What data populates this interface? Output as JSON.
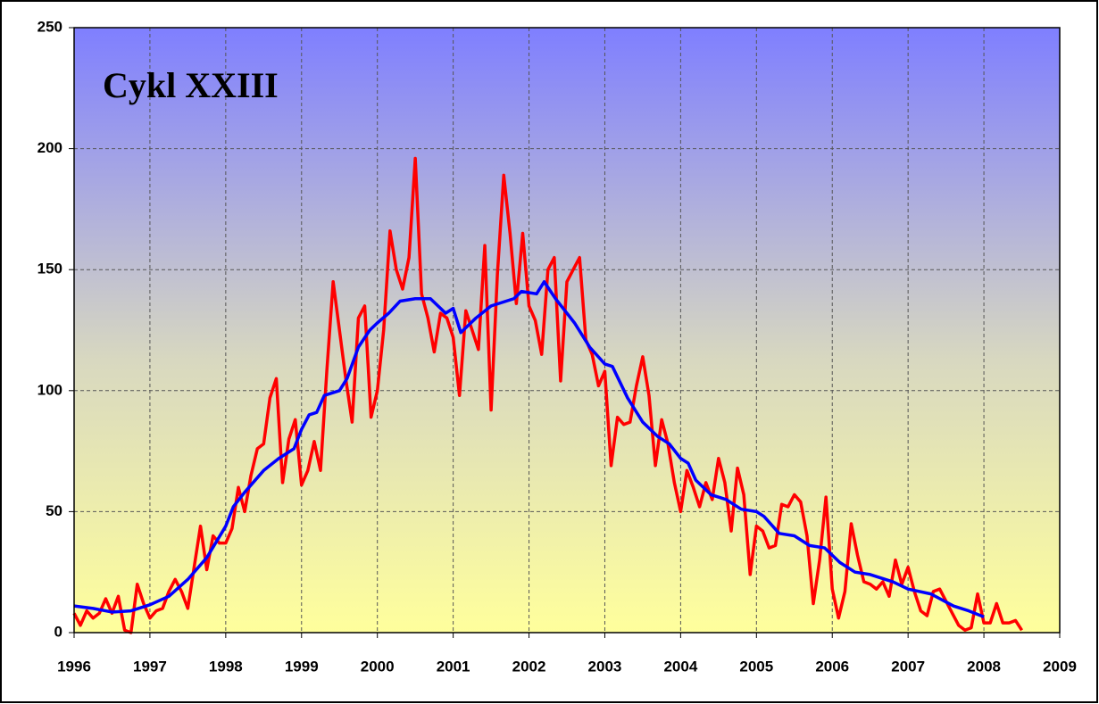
{
  "chart_data": {
    "type": "line",
    "title": "Cykl XXIII",
    "xlim": [
      1996,
      2009
    ],
    "xticks": [
      1996,
      1997,
      1998,
      1999,
      2000,
      2001,
      2002,
      2003,
      2004,
      2005,
      2006,
      2007,
      2008,
      2009
    ],
    "ylim": [
      0,
      250
    ],
    "yticks": [
      0,
      50,
      100,
      150,
      200,
      250
    ],
    "grid": true,
    "series": [
      {
        "color": "#ff0000",
        "x": [
          1996,
          1996.083,
          1996.167,
          1996.25,
          1996.333,
          1996.417,
          1996.5,
          1996.583,
          1996.667,
          1996.75,
          1996.833,
          1996.917,
          1997,
          1997.083,
          1997.167,
          1997.25,
          1997.333,
          1997.417,
          1997.5,
          1997.583,
          1997.667,
          1997.75,
          1997.833,
          1997.917,
          1998,
          1998.083,
          1998.167,
          1998.25,
          1998.333,
          1998.417,
          1998.5,
          1998.583,
          1998.667,
          1998.75,
          1998.833,
          1998.917,
          1999,
          1999.083,
          1999.167,
          1999.25,
          1999.333,
          1999.417,
          1999.5,
          1999.583,
          1999.667,
          1999.75,
          1999.833,
          1999.917,
          2000,
          2000.083,
          2000.167,
          2000.25,
          2000.333,
          2000.417,
          2000.5,
          2000.583,
          2000.667,
          2000.75,
          2000.833,
          2000.917,
          2001,
          2001.083,
          2001.167,
          2001.25,
          2001.333,
          2001.417,
          2001.5,
          2001.583,
          2001.667,
          2001.75,
          2001.833,
          2001.917,
          2002,
          2002.083,
          2002.167,
          2002.25,
          2002.333,
          2002.417,
          2002.5,
          2002.583,
          2002.667,
          2002.75,
          2002.833,
          2002.917,
          2003,
          2003.083,
          2003.167,
          2003.25,
          2003.333,
          2003.417,
          2003.5,
          2003.583,
          2003.667,
          2003.75,
          2003.833,
          2003.917,
          2004,
          2004.083,
          2004.167,
          2004.25,
          2004.333,
          2004.417,
          2004.5,
          2004.583,
          2004.667,
          2004.75,
          2004.833,
          2004.917,
          2005,
          2005.083,
          2005.167,
          2005.25,
          2005.333,
          2005.417,
          2005.5,
          2005.583,
          2005.667,
          2005.75,
          2005.833,
          2005.917,
          2006,
          2006.083,
          2006.167,
          2006.25,
          2006.333,
          2006.417,
          2006.5,
          2006.583,
          2006.667,
          2006.75,
          2006.833,
          2006.917,
          2007,
          2007.083,
          2007.167,
          2007.25,
          2007.333,
          2007.417,
          2007.5,
          2007.583,
          2007.667,
          2007.75,
          2007.833,
          2007.917,
          2008,
          2008.083,
          2008.167,
          2008.25,
          2008.333,
          2008.417,
          2008.5
        ],
        "values": [
          8,
          3,
          9,
          6,
          8,
          14,
          8,
          15,
          1,
          0,
          20,
          12,
          6,
          9,
          10,
          17,
          22,
          17,
          10,
          27,
          44,
          26,
          40,
          37,
          37,
          43,
          60,
          50,
          65,
          76,
          78,
          97,
          105,
          62,
          80,
          88,
          61,
          67,
          79,
          67,
          108,
          145,
          125,
          105,
          87,
          130,
          135,
          89,
          100,
          125,
          166,
          150,
          142,
          155,
          196,
          140,
          130,
          116,
          132,
          130,
          122,
          98,
          133,
          125,
          117,
          160,
          92,
          148,
          189,
          165,
          136,
          165,
          135,
          129,
          115,
          150,
          155,
          104,
          145,
          150,
          155,
          121,
          115,
          102,
          108,
          69,
          89,
          86,
          87,
          102,
          114,
          98,
          69,
          88,
          78,
          62,
          50,
          67,
          60,
          52,
          62,
          55,
          72,
          62,
          42,
          68,
          57,
          24,
          44,
          42,
          35,
          36,
          53,
          52,
          57,
          54,
          40,
          12,
          30,
          56,
          18,
          6,
          17,
          45,
          32,
          21,
          20,
          18,
          21,
          15,
          30,
          20,
          27,
          17,
          9,
          7,
          17,
          18,
          13,
          8,
          3,
          1,
          2,
          16,
          4,
          4,
          12,
          4,
          4,
          5,
          1
        ]
      },
      {
        "color": "#0000ff",
        "x": [
          1996,
          1996.25,
          1996.5,
          1996.75,
          1997,
          1997.25,
          1997.5,
          1997.75,
          1998,
          1998.1,
          1998.25,
          1998.5,
          1998.7,
          1998.9,
          1999,
          1999.1,
          1999.2,
          1999.3,
          1999.5,
          1999.6,
          1999.75,
          1999.9,
          2000,
          2000.15,
          2000.3,
          2000.5,
          2000.7,
          2000.9,
          2001,
          2001.1,
          2001.3,
          2001.5,
          2001.8,
          2001.9,
          2002.1,
          2002.2,
          2002.35,
          2002.6,
          2002.8,
          2003,
          2003.1,
          2003.3,
          2003.5,
          2003.7,
          2003.85,
          2004,
          2004.1,
          2004.2,
          2004.4,
          2004.6,
          2004.8,
          2005,
          2005.1,
          2005.3,
          2005.5,
          2005.7,
          2005.9,
          2006.1,
          2006.3,
          2006.5,
          2006.8,
          2007,
          2007.3,
          2007.6,
          2007.8,
          2008
        ],
        "values": [
          11,
          10,
          8.5,
          9,
          11.5,
          15,
          22,
          31,
          44,
          52,
          58,
          67,
          72,
          76,
          84,
          90,
          91,
          98,
          100,
          105,
          118,
          125,
          128,
          132,
          137,
          138,
          138,
          132,
          134,
          124,
          130,
          135,
          138,
          141,
          140,
          145,
          138,
          128,
          118,
          111,
          110,
          97,
          87,
          81,
          78,
          72,
          70,
          63,
          57,
          55,
          51,
          50,
          48,
          41,
          40,
          36,
          35,
          29,
          25,
          24,
          21,
          18,
          16,
          11,
          9,
          6.5
        ]
      }
    ]
  }
}
